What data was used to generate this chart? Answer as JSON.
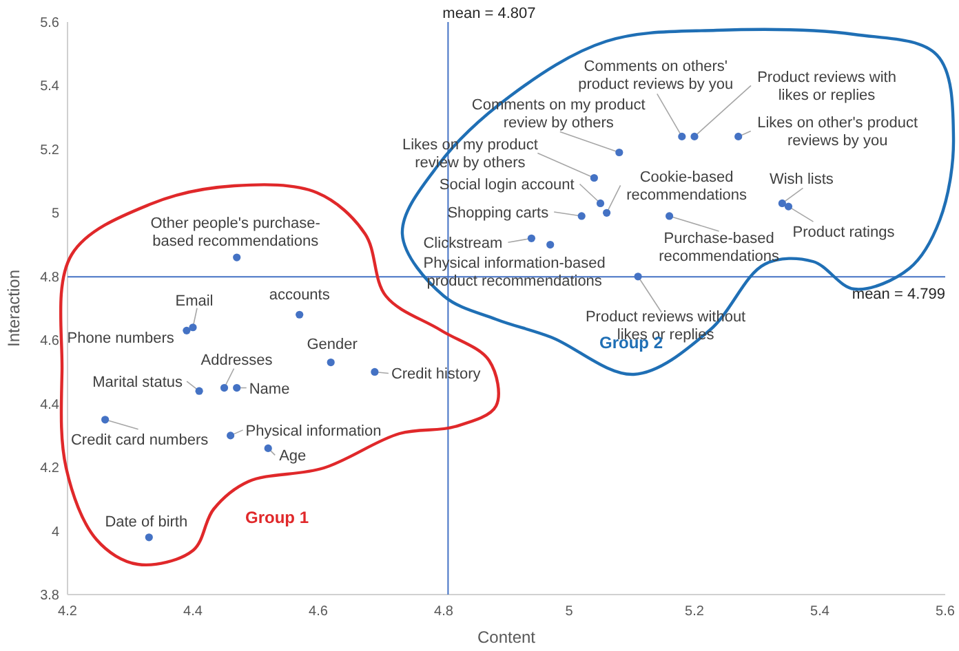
{
  "chart_data": {
    "type": "scatter",
    "xlabel": "Content",
    "ylabel": "Interaction",
    "xlim": [
      4.2,
      5.6
    ],
    "xticks": [
      4.2,
      4.4,
      4.6,
      4.8,
      5,
      5.2,
      5.4,
      5.6
    ],
    "ylim": [
      3.8,
      5.6
    ],
    "yticks": [
      3.8,
      4,
      4.2,
      4.4,
      4.6,
      4.8,
      5,
      5.2,
      5.4,
      5.6
    ],
    "grid": false,
    "marker": "circle",
    "series": [
      {
        "color": "#4472c4",
        "x": [
          4.47,
          4.4,
          4.39,
          4.57,
          4.62,
          4.69,
          4.45,
          4.47,
          4.41,
          4.26,
          4.46,
          4.52,
          4.33,
          5.18,
          5.2,
          5.27,
          5.08,
          5.04,
          5.05,
          5.06,
          5.02,
          5.16,
          5.34,
          5.35,
          4.94,
          4.97,
          5.11
        ],
        "values": [
          4.86,
          4.64,
          4.63,
          4.68,
          4.53,
          4.5,
          4.45,
          4.45,
          4.44,
          4.35,
          4.3,
          4.26,
          3.98,
          5.24,
          5.24,
          5.24,
          5.19,
          5.11,
          5.03,
          5,
          4.99,
          4.99,
          5.03,
          5.02,
          4.92,
          4.9,
          4.8
        ]
      }
    ],
    "ref_lines": [
      {
        "axis": "x",
        "value": 4.807,
        "label": "mean = 4.807",
        "color": "#4472c4"
      },
      {
        "axis": "y",
        "value": 4.799,
        "label": "mean = 4.799",
        "color": "#4472c4"
      }
    ],
    "annotations": [
      {
        "text": "Other people's purchase-based recommendations",
        "x": 4.47,
        "y": 4.86
      },
      {
        "text": "Email",
        "x": 4.4,
        "y": 4.64
      },
      {
        "text": "Phone numbers",
        "x": 4.39,
        "y": 4.63
      },
      {
        "text": "accounts",
        "x": 4.57,
        "y": 4.68
      },
      {
        "text": "Gender",
        "x": 4.62,
        "y": 4.53
      },
      {
        "text": "Credit history",
        "x": 4.69,
        "y": 4.5
      },
      {
        "text": "Addresses",
        "x": 4.45,
        "y": 4.45
      },
      {
        "text": "Name",
        "x": 4.47,
        "y": 4.45
      },
      {
        "text": "Marital status",
        "x": 4.41,
        "y": 4.44
      },
      {
        "text": "Credit card numbers",
        "x": 4.26,
        "y": 4.35
      },
      {
        "text": "Physical information",
        "x": 4.46,
        "y": 4.3
      },
      {
        "text": "Age",
        "x": 4.52,
        "y": 4.26
      },
      {
        "text": "Date of birth",
        "x": 4.33,
        "y": 3.98
      },
      {
        "text": "Comments on others' product reviews by you",
        "x": 5.18,
        "y": 5.24
      },
      {
        "text": "Product reviews with likes or replies",
        "x": 5.2,
        "y": 5.24
      },
      {
        "text": "Likes on other's product reviews by you",
        "x": 5.27,
        "y": 5.24
      },
      {
        "text": "Comments on my product review by others",
        "x": 5.08,
        "y": 5.19
      },
      {
        "text": "Likes on my product review by others",
        "x": 5.04,
        "y": 5.11
      },
      {
        "text": "Social login account",
        "x": 5.05,
        "y": 5.03
      },
      {
        "text": "Cookie-based recommendations",
        "x": 5.06,
        "y": 5
      },
      {
        "text": "Shopping carts",
        "x": 5.02,
        "y": 4.99
      },
      {
        "text": "Purchase-based recommendations",
        "x": 5.16,
        "y": 4.99
      },
      {
        "text": "Wish lists",
        "x": 5.34,
        "y": 5.03
      },
      {
        "text": "Product ratings",
        "x": 5.35,
        "y": 5.02
      },
      {
        "text": "Clickstream",
        "x": 4.94,
        "y": 4.92
      },
      {
        "text": "Physical information-based product recommendations",
        "x": 4.97,
        "y": 4.9
      },
      {
        "text": "Product reviews without likes or replies",
        "x": 5.11,
        "y": 4.8
      },
      "Group 1",
      "Group 2"
    ]
  }
}
